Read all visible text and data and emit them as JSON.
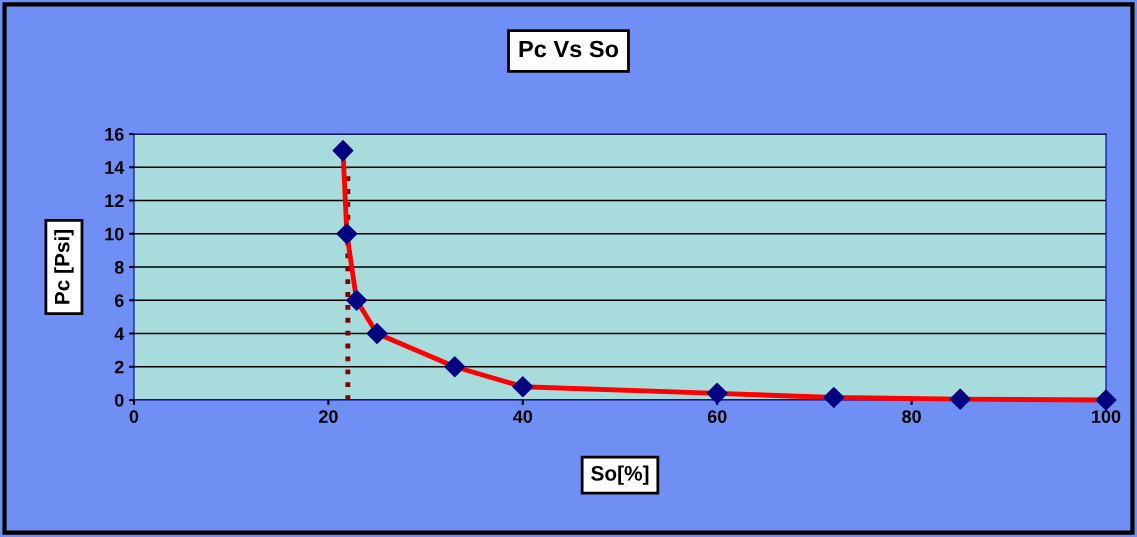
{
  "chart_data": {
    "type": "line",
    "title": "Pc Vs So",
    "xlabel": "So[%]",
    "ylabel": "Pc [Psi]",
    "xlim": [
      0,
      100
    ],
    "xticks": [
      0,
      20,
      40,
      60,
      80,
      100
    ],
    "ylim": [
      0,
      16
    ],
    "yticks": [
      0,
      2,
      4,
      6,
      8,
      10,
      12,
      14,
      16
    ],
    "grid": "y",
    "legend": false,
    "series": [
      {
        "color": "#800000",
        "marker": "none",
        "line_style": "dotted",
        "x": [
          22,
          22
        ],
        "values": [
          0,
          14
        ]
      },
      {
        "color": "#ff0000",
        "marker": "diamond",
        "colors": [
          "#000080",
          "#000080",
          "#000080",
          "#000080",
          "#000080",
          "#000080",
          "#000080",
          "#000080",
          "#000080",
          "#000080"
        ],
        "line_style": "solid",
        "x": [
          21.5,
          21.9,
          22.9,
          25,
          33,
          40,
          60,
          72,
          85,
          100
        ],
        "values": [
          15,
          10,
          6,
          4,
          2,
          0.8,
          0.4,
          0.15,
          0.05,
          0
        ]
      }
    ]
  }
}
